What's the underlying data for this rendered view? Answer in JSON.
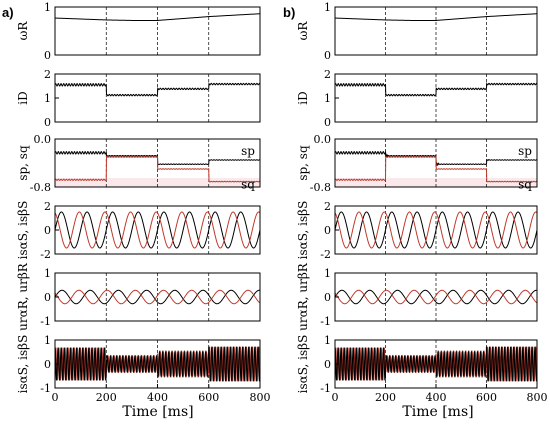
{
  "figure": {
    "panel_labels": [
      "a)",
      "b)"
    ],
    "x_label": "Time [ms]",
    "x_ticks": [
      "0",
      "200",
      "400",
      "600",
      "800"
    ],
    "switch_times_ms": [
      200,
      400,
      600
    ]
  },
  "colors": {
    "black": "#000000",
    "red": "#c0392b",
    "band": "#f6d9de"
  },
  "chart_data": {
    "type": "line",
    "x_range_ms": [
      0,
      800
    ],
    "rows": [
      {
        "id": "omega",
        "ylabel": "ωR",
        "ylim": [
          0,
          1
        ],
        "yticks": [
          "0",
          "1"
        ],
        "series": [
          {
            "color": "black",
            "points": {
              "x": [
                0,
                100,
                200,
                300,
                400,
                500,
                600,
                700,
                800
              ],
              "y": [
                0.77,
                0.75,
                0.73,
                0.72,
                0.72,
                0.76,
                0.8,
                0.83,
                0.86
              ]
            }
          }
        ]
      },
      {
        "id": "iD",
        "ylabel": "iD",
        "ylim": [
          0,
          2
        ],
        "yticks": [
          "0",
          "1",
          "2"
        ],
        "series": [
          {
            "color": "black",
            "segments": [
              {
                "x": [
                  0,
                  200
                ],
                "y": 1.55,
                "ripple": 0.05
              },
              {
                "x": [
                  200,
                  400
                ],
                "y": 1.12,
                "ripple": 0.03
              },
              {
                "x": [
                  400,
                  600
                ],
                "y": 1.38,
                "ripple": 0.03
              },
              {
                "x": [
                  600,
                  800
                ],
                "y": 1.58,
                "ripple": 0.03
              }
            ]
          }
        ]
      },
      {
        "id": "sp_sq",
        "ylabel": "sp, sq",
        "ylim": [
          -0.8,
          0.0
        ],
        "yticks": [
          "-0.8",
          "0.0"
        ],
        "legend": [
          "sp",
          "sq"
        ],
        "series": [
          {
            "name": "sp",
            "color": "black",
            "segments": [
              {
                "x": [
                  0,
                  200
                ],
                "y": -0.23,
                "ripple": 0.02
              },
              {
                "x": [
                  200,
                  400
                ],
                "y": -0.28,
                "ripple": 0.005
              },
              {
                "x": [
                  400,
                  600
                ],
                "y": -0.42,
                "ripple": 0.005
              },
              {
                "x": [
                  600,
                  800
                ],
                "y": -0.35,
                "ripple": 0.005
              }
            ]
          },
          {
            "name": "sq",
            "color": "red",
            "segments": [
              {
                "x": [
                  0,
                  200
                ],
                "y": -0.68,
                "ripple": 0.01
              },
              {
                "x": [
                  200,
                  400
                ],
                "y": -0.3,
                "ripple": 0.005
              },
              {
                "x": [
                  400,
                  600
                ],
                "y": -0.5,
                "ripple": 0.005
              },
              {
                "x": [
                  600,
                  800
                ],
                "y": -0.71,
                "ripple": 0.005
              }
            ]
          }
        ]
      },
      {
        "id": "isaS_isbS_top",
        "ylabel": "isαS, isβS",
        "ylim": [
          -2,
          2
        ],
        "yticks": [
          "-2",
          "0",
          "2"
        ],
        "oscillation": {
          "amplitude": 1.5,
          "period_ms": 100,
          "phase_shift": 0.6
        }
      },
      {
        "id": "uraR_urbR",
        "ylabel": "urαR, urβR",
        "ylim": [
          -1,
          1
        ],
        "yticks": [
          "-1",
          "0",
          "1"
        ],
        "oscillation": {
          "amplitude": 0.28,
          "period_ms": 110,
          "phase_shift": 0.8
        }
      },
      {
        "id": "isaS_isbS_bottom",
        "ylabel": "isαS, isβS",
        "ylim": [
          -1,
          1
        ],
        "yticks": [
          "-1",
          "0",
          "1"
        ],
        "envelope": {
          "x": [
            [
              0,
              200
            ],
            [
              200,
              400
            ],
            [
              400,
              600
            ],
            [
              600,
              800
            ]
          ],
          "amplitude": [
            0.68,
            0.33,
            0.5,
            0.72
          ],
          "period_ms": 12
        }
      }
    ]
  }
}
